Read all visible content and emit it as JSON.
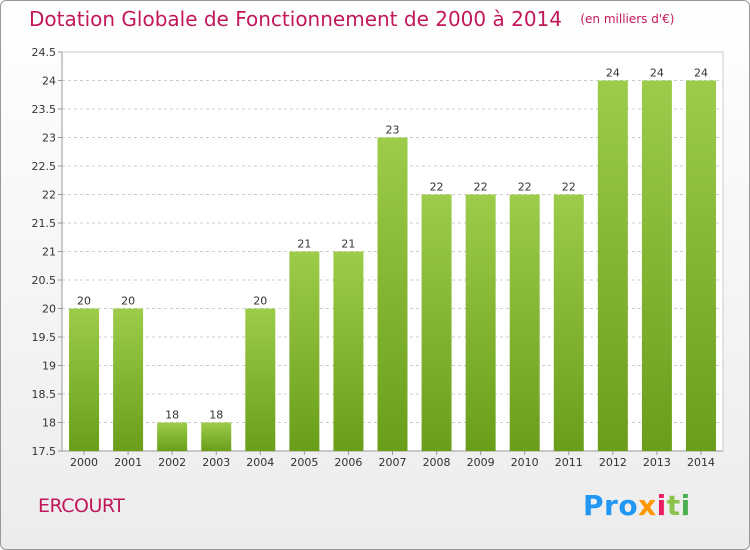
{
  "header": {
    "title": "Dotation Globale de Fonctionnement de 2000 à 2014",
    "subtitle": "(en milliers d'€)"
  },
  "footer": {
    "commune": "ERCOURT",
    "logo_text": [
      "Pro",
      "x",
      "i",
      "t",
      "i"
    ]
  },
  "colors": {
    "title": "#c2185b",
    "bar_light": "#9ccc4a",
    "bar_dark": "#6a9e1a"
  },
  "chart_data": {
    "type": "bar",
    "title": "Dotation Globale de Fonctionnement de 2000 à 2014",
    "subtitle": "(en milliers d'€)",
    "xlabel": "",
    "ylabel": "",
    "categories": [
      "2000",
      "2001",
      "2002",
      "2003",
      "2004",
      "2005",
      "2006",
      "2007",
      "2008",
      "2009",
      "2010",
      "2011",
      "2012",
      "2013",
      "2014"
    ],
    "values": [
      20,
      20,
      18,
      18,
      20,
      21,
      21,
      23,
      22,
      22,
      22,
      22,
      24,
      24,
      24
    ],
    "ylim": [
      17.5,
      24.5
    ],
    "yticks": [
      "17.5",
      "18",
      "18.5",
      "19",
      "19.5",
      "20",
      "20.5",
      "21",
      "21.5",
      "22",
      "22.5",
      "23",
      "23.5",
      "24",
      "24.5"
    ],
    "grid": true,
    "legend": "none"
  }
}
